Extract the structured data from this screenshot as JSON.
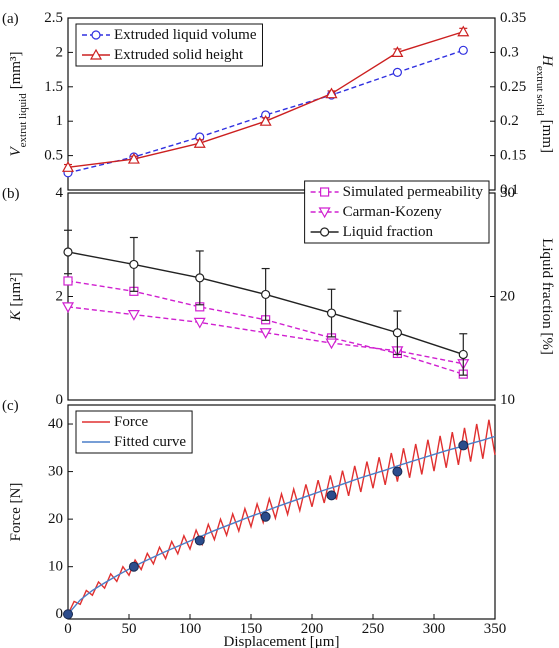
{
  "chart_data": [
    {
      "type": "line",
      "panel_label": "(a)",
      "ylabel": {
        "text": "V",
        "sub": "extrut liquid",
        "unit": "[mm³]"
      },
      "y2label": {
        "text": "H",
        "sub": "extrut solid",
        "unit": "[mm]"
      },
      "x": [
        0,
        54,
        108,
        162,
        216,
        270,
        324
      ],
      "xlim": [
        0,
        350
      ],
      "ylim": [
        0,
        2.5
      ],
      "yticks": [
        0.5,
        1,
        1.5,
        2,
        2.5
      ],
      "y2lim": [
        0.1,
        0.35
      ],
      "y2ticks": [
        0.1,
        0.15,
        0.2,
        0.25,
        0.3,
        0.35
      ],
      "legend": "upper left",
      "series": [
        {
          "name": "Extruded liquid volume",
          "color": "#3030e0",
          "marker": "circle",
          "dashed": true,
          "values": [
            0.25,
            0.48,
            0.77,
            1.09,
            1.38,
            1.71,
            2.03
          ]
        },
        {
          "name": "Extruded solid height",
          "color": "#cc2020",
          "marker": "triangle-up",
          "dashed": false,
          "axis": "y2",
          "values": [
            0.133,
            0.145,
            0.168,
            0.2,
            0.24,
            0.3,
            0.33
          ],
          "errors": [
            0.004,
            0.004,
            0.005,
            0.005,
            0.004,
            0.005,
            0.005
          ]
        }
      ]
    },
    {
      "type": "line",
      "panel_label": "(b)",
      "ylabel": {
        "text": "K",
        "unit": "[μm²]"
      },
      "y2label": "Liquid fraction [%]",
      "x": [
        0,
        54,
        108,
        162,
        216,
        270,
        324
      ],
      "xlim": [
        0,
        350
      ],
      "ylim": [
        0,
        4
      ],
      "yticks": [
        0,
        2,
        4
      ],
      "y2lim": [
        10,
        30
      ],
      "y2ticks": [
        10,
        20,
        30
      ],
      "legend": "upper right",
      "series": [
        {
          "name": "Simulated permeability",
          "color": "#d020d0",
          "marker": "square",
          "dashed": true,
          "values": [
            2.3,
            2.1,
            1.8,
            1.55,
            1.2,
            0.9,
            0.5
          ]
        },
        {
          "name": "Carman-Kozeny",
          "color": "#d020d0",
          "marker": "triangle-down",
          "dashed": true,
          "values": [
            1.8,
            1.65,
            1.5,
            1.3,
            1.1,
            0.95,
            0.7
          ]
        },
        {
          "name": "Liquid fraction",
          "color": "#222222",
          "marker": "circle",
          "dashed": false,
          "axis": "y2",
          "values": [
            24.3,
            23.1,
            21.8,
            20.2,
            18.4,
            16.5,
            14.4
          ],
          "errors": [
            2.1,
            2.6,
            2.6,
            2.5,
            2.3,
            2.1,
            2.0
          ]
        }
      ]
    },
    {
      "type": "line",
      "panel_label": "(c)",
      "ylabel": "Force [N]",
      "xlabel": "Displacement [μm]",
      "xlim": [
        0,
        350
      ],
      "xticks": [
        0,
        50,
        100,
        150,
        200,
        250,
        300,
        350
      ],
      "ylim": [
        -1,
        44
      ],
      "yticks": [
        0,
        10,
        20,
        30,
        40
      ],
      "legend": "upper left",
      "series": [
        {
          "name": "Force",
          "color": "#e03030",
          "marker": "none",
          "dashed": false,
          "x": [
            0,
            5,
            10,
            15,
            20,
            25,
            30,
            35,
            40,
            45,
            50,
            55,
            60,
            65,
            70,
            75,
            80,
            85,
            90,
            95,
            100,
            105,
            110,
            115,
            120,
            125,
            130,
            135,
            140,
            145,
            150,
            155,
            160,
            165,
            170,
            175,
            180,
            185,
            190,
            195,
            200,
            205,
            210,
            215,
            220,
            225,
            230,
            235,
            240,
            245,
            250,
            255,
            260,
            265,
            270,
            275,
            280,
            285,
            290,
            295,
            300,
            305,
            310,
            315,
            320,
            325,
            330,
            335,
            340,
            345,
            350
          ],
          "values": [
            0,
            2.7,
            2.1,
            5.0,
            4.0,
            6.8,
            5.5,
            8.5,
            6.9,
            10.0,
            8.2,
            11.4,
            9.4,
            12.8,
            10.6,
            14.1,
            11.7,
            15.3,
            12.7,
            16.5,
            13.7,
            17.7,
            14.7,
            18.9,
            15.7,
            20.0,
            16.6,
            21.1,
            17.5,
            22.2,
            18.4,
            23.2,
            19.3,
            24.3,
            20.2,
            25.3,
            21.0,
            26.3,
            21.8,
            27.3,
            22.6,
            28.2,
            23.4,
            29.2,
            24.1,
            30.2,
            24.9,
            31.2,
            25.7,
            32.1,
            26.5,
            33.0,
            27.2,
            33.9,
            27.9,
            34.9,
            28.7,
            35.8,
            29.4,
            36.7,
            30.1,
            37.5,
            30.8,
            38.3,
            31.4,
            39.2,
            32.1,
            40.0,
            32.7,
            40.9,
            33.5
          ]
        },
        {
          "name": "Fitted curve",
          "color": "#4a7ec8",
          "marker": "none",
          "dashed": false,
          "x": [
            0,
            10,
            20,
            30,
            40,
            50,
            60,
            70,
            80,
            90,
            100,
            110,
            120,
            130,
            140,
            150,
            160,
            170,
            180,
            190,
            200,
            210,
            220,
            230,
            240,
            250,
            260,
            270,
            280,
            290,
            300,
            310,
            320,
            330,
            340,
            350
          ],
          "values": [
            0,
            3.0,
            5.0,
            6.6,
            8.1,
            9.5,
            10.8,
            12.0,
            13.2,
            14.3,
            15.4,
            16.5,
            17.6,
            18.6,
            19.6,
            20.6,
            21.5,
            22.5,
            23.4,
            24.3,
            25.2,
            26.1,
            26.9,
            27.8,
            28.7,
            29.5,
            30.3,
            31.2,
            32.0,
            32.8,
            33.6,
            34.4,
            35.1,
            35.9,
            36.6,
            37.4
          ]
        }
      ],
      "points": {
        "color": "#2c4c8c",
        "x": [
          0,
          54,
          108,
          162,
          216,
          270,
          324
        ],
        "values": [
          0,
          10,
          15.5,
          20.5,
          25,
          30,
          35.5
        ]
      }
    }
  ]
}
